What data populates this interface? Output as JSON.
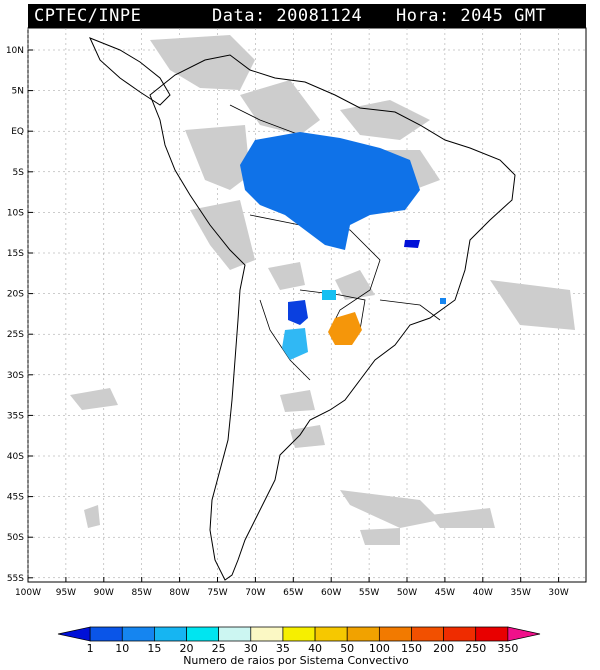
{
  "header": {
    "source": "CPTEC/INPE",
    "data_label": "Data: 20081124",
    "hora_label": "Hora: 2045 GMT"
  },
  "axes": {
    "lat_labels": [
      "10N",
      "5N",
      "EQ",
      "5S",
      "10S",
      "15S",
      "20S",
      "25S",
      "30S",
      "35S",
      "40S",
      "45S",
      "50S",
      "55S"
    ],
    "lon_labels": [
      "100W",
      "95W",
      "90W",
      "85W",
      "80W",
      "75W",
      "70W",
      "65W",
      "60W",
      "55W",
      "50W",
      "45W",
      "40W",
      "35W",
      "30W"
    ]
  },
  "colorbar": {
    "title": "Numero de raios por Sistema Convectivo",
    "levels": [
      "1",
      "10",
      "15",
      "20",
      "25",
      "30",
      "35",
      "40",
      "50",
      "100",
      "150",
      "200",
      "250",
      "350"
    ],
    "colors": [
      "#0010d8",
      "#0a55e8",
      "#1585f0",
      "#16b5f2",
      "#00e5f0",
      "#ccf6f2",
      "#fbf8c4",
      "#f6ef00",
      "#f6c800",
      "#f1a200",
      "#f27a00",
      "#f25000",
      "#ef2c00",
      "#e80000",
      "#f0108a"
    ]
  },
  "colors": {
    "land": "#ffffff",
    "cloud_gray": "#c8c8c8",
    "border": "#000000",
    "grid": "#999999"
  }
}
